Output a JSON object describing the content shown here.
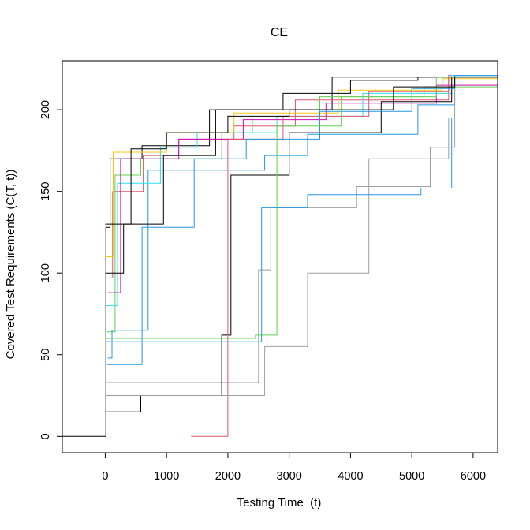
{
  "chart_data": {
    "type": "line",
    "title": "CE",
    "xlabel": "Testing Time  (t)",
    "ylabel": "Covered Test Requirements (C(T, t))",
    "xlim": [
      -700,
      6400
    ],
    "ylim": [
      -10,
      230
    ],
    "xticks": [
      0,
      1000,
      2000,
      3000,
      4000,
      5000,
      6000
    ],
    "yticks": [
      0,
      50,
      100,
      150,
      200
    ],
    "xtick_labels": [
      "0",
      "1000",
      "2000",
      "3000",
      "4000",
      "5000",
      "6000"
    ],
    "ytick_labels": [
      "0",
      "50",
      "100",
      "150",
      "200"
    ],
    "grid": false,
    "legend": "none",
    "line_style": "step",
    "palette": [
      "#000000",
      "#DF536B",
      "#61D04F",
      "#2297E6",
      "#28E2E5",
      "#CD0BBC",
      "#F5C710",
      "#9E9E9E"
    ],
    "series": [
      {
        "color": "#000000",
        "x": [
          -700,
          10,
          80,
          600,
          1700,
          3700,
          6400
        ],
        "y": [
          0,
          128,
          170,
          178,
          200,
          220,
          220
        ]
      },
      {
        "color": "#DF536B",
        "x": [
          10,
          120,
          620,
          1200,
          2100,
          3100,
          5600,
          6400
        ],
        "y": [
          97,
          150,
          172,
          182,
          190,
          206,
          221,
          221
        ]
      },
      {
        "color": "#61D04F",
        "x": [
          30,
          160,
          580,
          1900,
          2400,
          3500,
          5200,
          6400
        ],
        "y": [
          64,
          160,
          170,
          186,
          195,
          208,
          214,
          221
        ]
      },
      {
        "color": "#2297E6",
        "x": [
          40,
          110,
          700,
          2600,
          3300,
          5100,
          5700,
          6400
        ],
        "y": [
          48,
          65,
          163,
          172,
          185,
          203,
          221,
          221
        ]
      },
      {
        "color": "#28E2E5",
        "x": [
          20,
          200,
          900,
          1500,
          2800,
          4200,
          5650,
          6400
        ],
        "y": [
          80,
          155,
          177,
          186,
          196,
          210,
          221,
          221
        ]
      },
      {
        "color": "#CD0BBC",
        "x": [
          50,
          250,
          1200,
          2250,
          3600,
          5400,
          6400
        ],
        "y": [
          88,
          170,
          182,
          194,
          204,
          215,
          221
        ]
      },
      {
        "color": "#F5C710",
        "x": [
          0,
          130,
          1000,
          2100,
          3800,
          5500,
          6400
        ],
        "y": [
          110,
          174,
          186,
          198,
          212,
          219,
          221
        ]
      },
      {
        "color": "#9E9E9E",
        "x": [
          0,
          2500,
          2700,
          4100,
          5300,
          5700,
          6400
        ],
        "y": [
          33,
          102,
          140,
          153,
          177,
          221,
          221
        ]
      },
      {
        "color": "#000000",
        "x": [
          0,
          580,
          1900,
          2050,
          3000,
          4500,
          5650,
          6400
        ],
        "y": [
          15,
          25,
          62,
          160,
          186,
          205,
          220,
          221
        ]
      },
      {
        "color": "#DF536B",
        "x": [
          1400,
          1950,
          2000,
          2900,
          4300,
          5600,
          6400
        ],
        "y": [
          0,
          0,
          182,
          196,
          211,
          220,
          221
        ]
      },
      {
        "color": "#2297E6",
        "x": [
          30,
          600,
          1450,
          2300,
          3500,
          5000,
          5700,
          6400
        ],
        "y": [
          44,
          128,
          170,
          182,
          199,
          213,
          221,
          221
        ]
      },
      {
        "color": "#000000",
        "x": [
          0,
          300,
          950,
          1800,
          2900,
          4000,
          5100,
          6400
        ],
        "y": [
          100,
          130,
          172,
          200,
          210,
          218,
          220,
          221
        ]
      },
      {
        "color": "#9E9E9E",
        "x": [
          0,
          2600,
          3300,
          4300,
          5600,
          6400
        ],
        "y": [
          25,
          55,
          100,
          170,
          195,
          221
        ]
      },
      {
        "color": "#61D04F",
        "x": [
          0,
          2450,
          2800,
          3850,
          5400,
          6400
        ],
        "y": [
          60,
          62,
          190,
          208,
          220,
          221
        ]
      },
      {
        "color": "#000000",
        "x": [
          0,
          420,
          1000,
          2000,
          3000,
          4700,
          5700,
          6400
        ],
        "y": [
          130,
          176,
          186,
          196,
          200,
          214,
          220,
          221
        ]
      },
      {
        "color": "#2297E6",
        "x": [
          0,
          2550,
          3300,
          5150,
          5650,
          6400
        ],
        "y": [
          58,
          140,
          148,
          152,
          195,
          221
        ]
      }
    ]
  }
}
